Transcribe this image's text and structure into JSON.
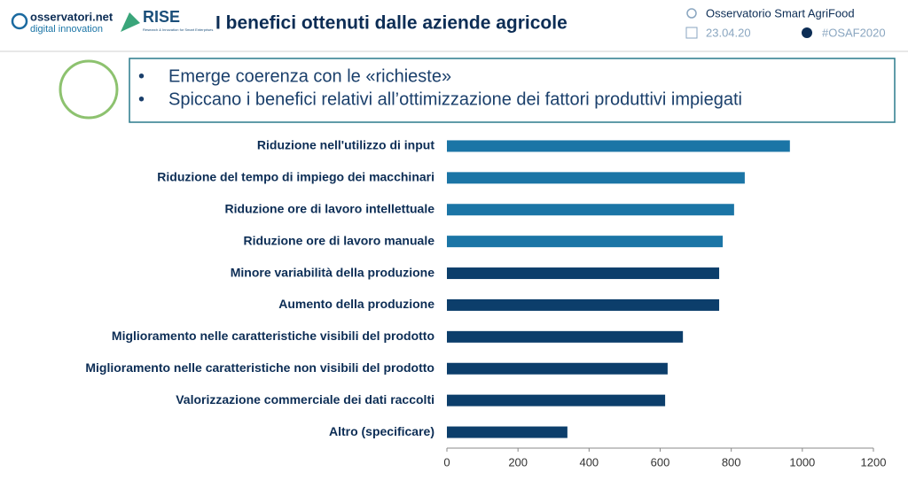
{
  "header": {
    "logo_text": "osservatori.net",
    "logo_subtext": "digital innovation",
    "rise": "RISE",
    "rise_subtext": "Research & Innovation for Smart Enterprises",
    "title": "I benefici ottenuti dalle aziende agricole",
    "observatory": "Osservatorio Smart AgriFood",
    "date": "23.04.20",
    "hashtag": "#OSAF2020"
  },
  "bullets": [
    "Emerge coerenza con le «richieste»",
    "Spiccano i benefici relativi all’ottimizzazione dei fattori produttivi impiegati"
  ],
  "chart_data": {
    "type": "bar",
    "orientation": "horizontal",
    "categories": [
      "Riduzione nell'utilizzo di input",
      "Riduzione del tempo di impiego dei macchinari",
      "Riduzione ore di lavoro intellettuale",
      "Riduzione ore di lavoro manuale",
      "Minore variabilità della produzione",
      "Aumento della produzione",
      "Miglioramento nelle caratteristiche visibili del prodotto",
      "Miglioramento nelle caratteristiche non visibili del prodotto",
      "Valorizzazione commerciale dei dati raccolti",
      "Altro (specificare)"
    ],
    "values": [
      965,
      838,
      808,
      776,
      766,
      766,
      664,
      621,
      614,
      339
    ],
    "colors": [
      "#1b75a6",
      "#1b75a6",
      "#1b75a6",
      "#1b75a6",
      "#0c3e6b",
      "#0c3e6b",
      "#0c3e6b",
      "#0c3e6b",
      "#0c3e6b",
      "#0c3e6b"
    ],
    "xlim": [
      0,
      1200
    ],
    "xticks": [
      0,
      200,
      400,
      600,
      800,
      1000,
      1200
    ],
    "grid": false
  }
}
